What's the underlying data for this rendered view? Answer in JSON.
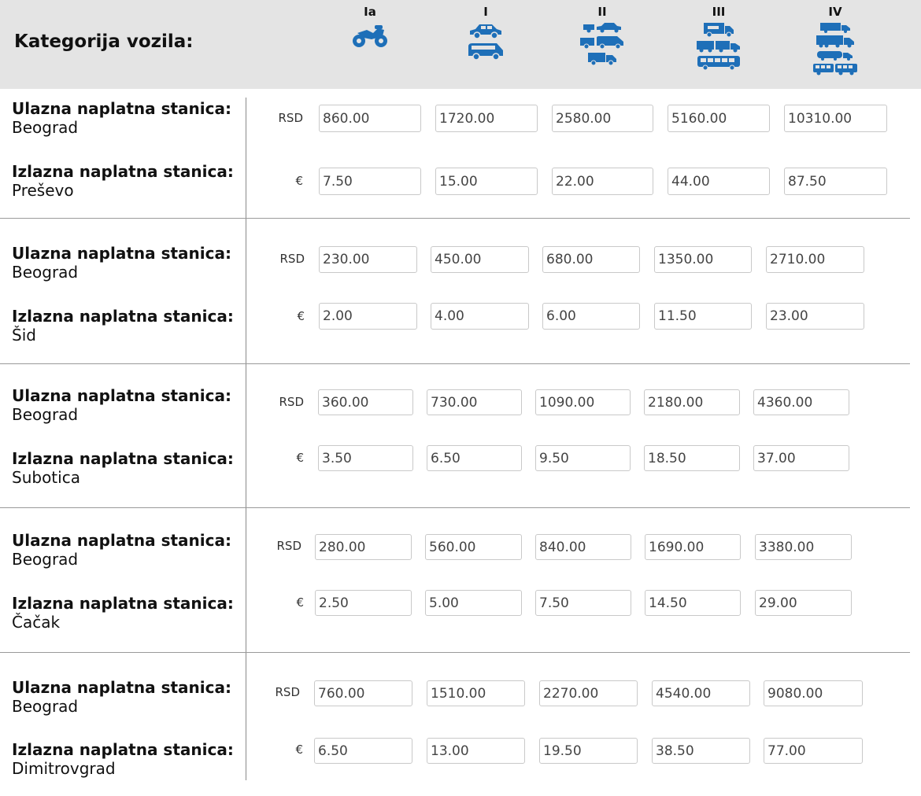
{
  "header": {
    "title": "Kategorija vozila:",
    "categories": [
      {
        "label": "Ia",
        "icon": "motorcycle-icon"
      },
      {
        "label": "I",
        "icon": "car-van-icon"
      },
      {
        "label": "II",
        "icon": "light-truck-icon"
      },
      {
        "label": "III",
        "icon": "truck-bus-icon"
      },
      {
        "label": "IV",
        "icon": "heavy-truck-icon"
      }
    ],
    "icon_color": "#1e6fb8"
  },
  "labels": {
    "entry": "Ulazna naplatna stanica:",
    "exit": "Izlazna naplatna stanica:",
    "rsd": "RSD",
    "eur": "€"
  },
  "routes": [
    {
      "entry": "Beograd",
      "exit": "Preševo",
      "rsd": [
        "860.00",
        "1720.00",
        "2580.00",
        "5160.00",
        "10310.00"
      ],
      "eur": [
        "7.50",
        "15.00",
        "22.00",
        "44.00",
        "87.50"
      ]
    },
    {
      "entry": "Beograd",
      "exit": "Šid",
      "rsd": [
        "230.00",
        "450.00",
        "680.00",
        "1350.00",
        "2710.00"
      ],
      "eur": [
        "2.00",
        "4.00",
        "6.00",
        "11.50",
        "23.00"
      ]
    },
    {
      "entry": "Beograd",
      "exit": "Subotica",
      "rsd": [
        "360.00",
        "730.00",
        "1090.00",
        "2180.00",
        "4360.00"
      ],
      "eur": [
        "3.50",
        "6.50",
        "9.50",
        "18.50",
        "37.00"
      ]
    },
    {
      "entry": "Beograd",
      "exit": "Čačak",
      "rsd": [
        "280.00",
        "560.00",
        "840.00",
        "1690.00",
        "3380.00"
      ],
      "eur": [
        "2.50",
        "5.00",
        "7.50",
        "14.50",
        "29.00"
      ]
    },
    {
      "entry": "Beograd",
      "exit": "Dimitrovgrad",
      "rsd": [
        "760.00",
        "1510.00",
        "2270.00",
        "4540.00",
        "9080.00"
      ],
      "eur": [
        "6.50",
        "13.00",
        "19.50",
        "38.50",
        "77.00"
      ]
    }
  ]
}
